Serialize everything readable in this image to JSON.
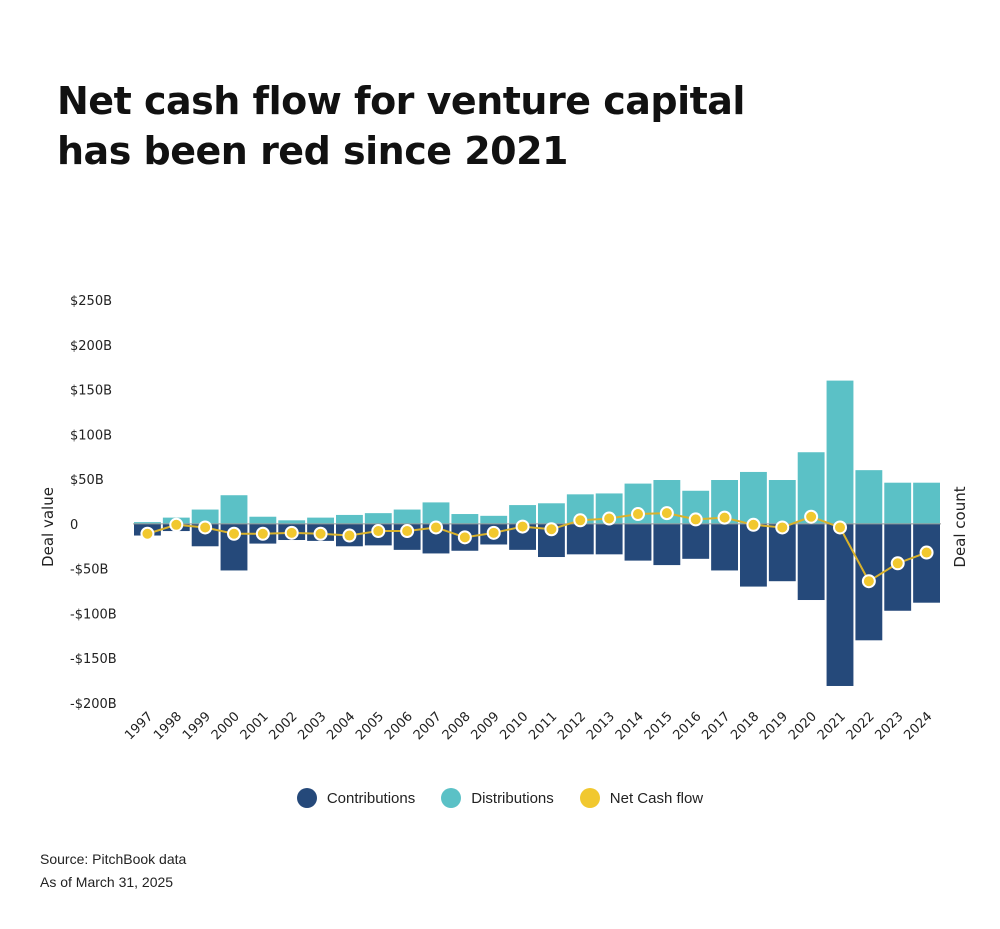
{
  "title_lines": [
    "Net cash flow for venture capital",
    "has been red since 2021"
  ],
  "footer": {
    "source": "Source: PitchBook data",
    "as_of": "As of March 31, 2025"
  },
  "colors": {
    "contributions": "#25497a",
    "distributions": "#5bc1c6",
    "net": "#f1c82f",
    "net_line": "#d9b22b"
  },
  "chart_data": {
    "type": "bar",
    "ylabel": "Deal value",
    "y2label": "Deal count",
    "ylim": [
      -200,
      250
    ],
    "yticks": [
      250,
      200,
      150,
      100,
      50,
      0,
      -50,
      -100,
      -150,
      -200
    ],
    "ytick_labels": [
      "$250B",
      "$200B",
      "$150B",
      "$100B",
      "$50B",
      "0",
      "-$50B",
      "-$100B",
      "-$150B",
      "-$200B"
    ],
    "categories": [
      "1997",
      "1998",
      "1999",
      "2000",
      "2001",
      "2002",
      "2003",
      "2004",
      "2005",
      "2006",
      "2007",
      "2008",
      "2009",
      "2010",
      "2011",
      "2012",
      "2013",
      "2014",
      "2015",
      "2016",
      "2017",
      "2018",
      "2019",
      "2020",
      "2021",
      "2022",
      "2023",
      "2024"
    ],
    "series": [
      {
        "name": "Contributions",
        "type": "bar",
        "values": [
          -13,
          -8,
          -25,
          -52,
          -22,
          -18,
          -19,
          -25,
          -24,
          -29,
          -33,
          -30,
          -23,
          -29,
          -37,
          -34,
          -34,
          -41,
          -46,
          -39,
          -52,
          -70,
          -64,
          -85,
          -181,
          -130,
          -97,
          -88
        ]
      },
      {
        "name": "Distributions",
        "type": "bar",
        "values": [
          2,
          7,
          16,
          32,
          8,
          4,
          7,
          10,
          12,
          16,
          24,
          11,
          9,
          21,
          23,
          33,
          34,
          45,
          49,
          37,
          49,
          58,
          49,
          80,
          160,
          60,
          46,
          46
        ]
      },
      {
        "name": "Net Cash flow",
        "type": "line",
        "values": [
          -11,
          -1,
          -4,
          -11,
          -11,
          -10,
          -11,
          -13,
          -8,
          -8,
          -4,
          -15,
          -10,
          -3,
          -6,
          4,
          6,
          11,
          12,
          5,
          7,
          -1,
          -4,
          8,
          -4,
          -64,
          -44,
          -32
        ]
      }
    ],
    "legend": "bottom",
    "grid": false
  }
}
